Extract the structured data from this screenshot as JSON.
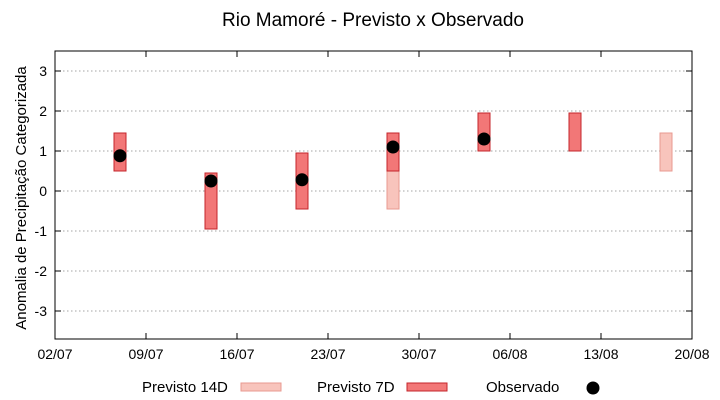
{
  "chart_data": {
    "type": "box",
    "title": "Rio Mamoré - Previsto x Observado",
    "xlabel": "",
    "ylabel": "Anomalia de Precipitação Categorizada",
    "x_ticks": [
      "02/07",
      "09/07",
      "16/07",
      "23/07",
      "30/07",
      "06/08",
      "13/08",
      "20/08"
    ],
    "xlim": [
      "02/07",
      "20/08"
    ],
    "ylim": [
      -3.7,
      3.5
    ],
    "y_ticks": [
      -3,
      -2,
      -1,
      0,
      1,
      2,
      3
    ],
    "grid": "y-dotted",
    "legend_position": "bottom",
    "series": [
      {
        "name": "Previsto 14D",
        "color": "#f8c4bc",
        "stroke": "#e89a90",
        "ranges": [
          {
            "x": "14/07",
            "low": -0.45,
            "high": 0.45
          },
          {
            "x": "28/07",
            "low": -0.45,
            "high": 1.45
          },
          {
            "x": "18/08",
            "low": 0.5,
            "high": 1.45
          }
        ]
      },
      {
        "name": "Previsto 7D",
        "color": "#f27777",
        "stroke": "#c4252b",
        "ranges": [
          {
            "x": "07/07",
            "low": 0.5,
            "high": 1.45
          },
          {
            "x": "14/07",
            "low": -0.95,
            "high": 0.45
          },
          {
            "x": "21/07",
            "low": -0.45,
            "high": 0.95
          },
          {
            "x": "28/07",
            "low": 0.5,
            "high": 1.45
          },
          {
            "x": "04/08",
            "low": 1.0,
            "high": 1.95
          },
          {
            "x": "11/08",
            "low": 1.0,
            "high": 1.95
          }
        ]
      },
      {
        "name": "Observado",
        "color": "#000000",
        "points": [
          {
            "x": "07/07",
            "y": 0.88
          },
          {
            "x": "14/07",
            "y": 0.25
          },
          {
            "x": "21/07",
            "y": 0.28
          },
          {
            "x": "28/07",
            "y": 1.1
          },
          {
            "x": "04/08",
            "y": 1.3
          }
        ]
      }
    ]
  }
}
